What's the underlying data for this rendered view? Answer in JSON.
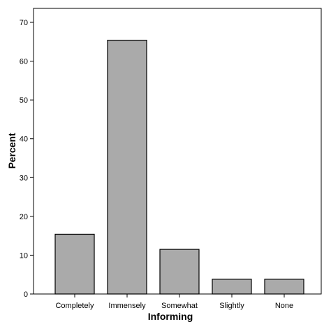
{
  "chart_data": {
    "type": "bar",
    "title": "",
    "xlabel": "Informing",
    "ylabel": "Percent",
    "categories": [
      "Completely",
      "Immensely",
      "Somewhat",
      "Slightly",
      "None"
    ],
    "values": [
      15.4,
      65.4,
      11.5,
      3.8,
      3.8
    ],
    "ylim": [
      0,
      75
    ],
    "yticks": [
      0,
      10,
      20,
      30,
      40,
      50,
      60,
      70
    ],
    "grid": false,
    "legend": "none",
    "colors": {
      "bar_fill": "#aaaaaa",
      "bar_stroke": "#000000",
      "axis": "#000000"
    }
  }
}
